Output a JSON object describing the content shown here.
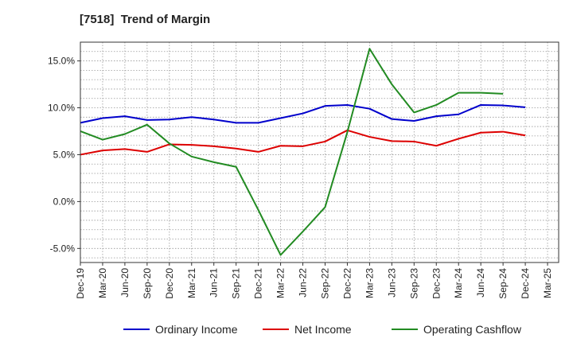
{
  "chart_data": {
    "type": "line",
    "title": "[7518]  Trend of Margin",
    "x": [
      "Dec-19",
      "Mar-20",
      "Jun-20",
      "Sep-20",
      "Dec-20",
      "Mar-21",
      "Jun-21",
      "Sep-21",
      "Dec-21",
      "Mar-22",
      "Jun-22",
      "Sep-22",
      "Dec-22",
      "Mar-23",
      "Jun-23",
      "Sep-23",
      "Dec-23",
      "Mar-24",
      "Jun-24",
      "Sep-24",
      "Dec-24",
      "Mar-25"
    ],
    "y_ticks": [
      "15.0%",
      "10.0%",
      "5.0%",
      "0.0%",
      "-5.0%"
    ],
    "y_tick_values": [
      15,
      10,
      5,
      0,
      -5
    ],
    "ylim": [
      -6.5,
      17
    ],
    "grid": true,
    "legend_position": "bottom",
    "series": [
      {
        "name": "Ordinary Income",
        "color": "#0000cc",
        "values": [
          8.4,
          8.9,
          9.1,
          8.7,
          8.75,
          9.0,
          8.75,
          8.4,
          8.4,
          8.9,
          9.4,
          10.2,
          10.3,
          9.9,
          8.8,
          8.6,
          9.1,
          9.3,
          10.3,
          10.25,
          10.05,
          null
        ]
      },
      {
        "name": "Net Income",
        "color": "#dd0000",
        "values": [
          5.0,
          5.45,
          5.6,
          5.3,
          6.1,
          6.05,
          5.9,
          5.65,
          5.3,
          5.95,
          5.9,
          6.4,
          7.6,
          6.9,
          6.45,
          6.4,
          5.95,
          6.7,
          7.35,
          7.45,
          7.05,
          null
        ]
      },
      {
        "name": "Operating Cashflow",
        "color": "#228b22",
        "values": [
          7.5,
          6.6,
          7.2,
          8.2,
          6.2,
          4.8,
          4.2,
          3.7,
          -0.9,
          -5.7,
          -3.2,
          -0.6,
          7.4,
          16.3,
          12.5,
          9.5,
          10.3,
          11.6,
          11.6,
          11.5,
          null,
          null
        ]
      }
    ]
  }
}
